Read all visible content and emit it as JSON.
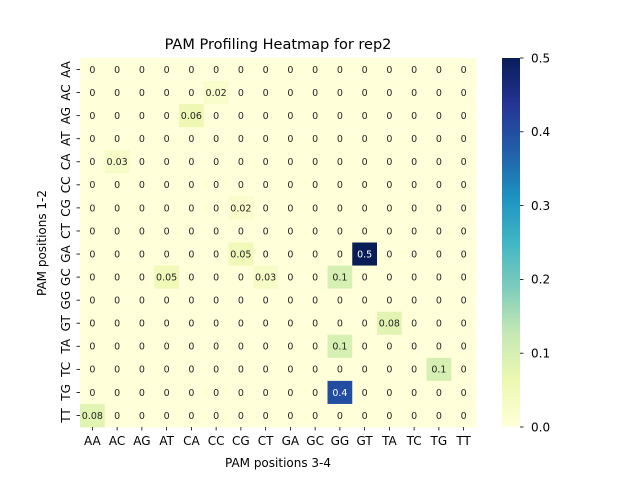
{
  "chart_data": {
    "type": "heatmap",
    "title": "PAM Profiling Heatmap for rep2",
    "xlabel": "PAM positions 3-4",
    "ylabel": "PAM positions 1-2",
    "x_categories": [
      "AA",
      "AC",
      "AG",
      "AT",
      "CA",
      "CC",
      "CG",
      "CT",
      "GA",
      "GC",
      "GG",
      "GT",
      "TA",
      "TC",
      "TG",
      "TT"
    ],
    "y_categories": [
      "AA",
      "AC",
      "AG",
      "AT",
      "CA",
      "CC",
      "CG",
      "CT",
      "GA",
      "GC",
      "GG",
      "GT",
      "TA",
      "TC",
      "TG",
      "TT"
    ],
    "values": [
      [
        0,
        0,
        0,
        0,
        0,
        0,
        0,
        0,
        0,
        0,
        0,
        0,
        0,
        0,
        0,
        0
      ],
      [
        0,
        0,
        0,
        0,
        0,
        0.02,
        0,
        0,
        0,
        0,
        0,
        0,
        0,
        0,
        0,
        0
      ],
      [
        0,
        0,
        0,
        0,
        0.06,
        0,
        0,
        0,
        0,
        0,
        0,
        0,
        0,
        0,
        0,
        0
      ],
      [
        0,
        0,
        0,
        0,
        0,
        0,
        0,
        0,
        0,
        0,
        0,
        0,
        0,
        0,
        0,
        0
      ],
      [
        0,
        0.03,
        0,
        0,
        0,
        0,
        0,
        0,
        0,
        0,
        0,
        0,
        0,
        0,
        0,
        0
      ],
      [
        0,
        0,
        0,
        0,
        0,
        0,
        0,
        0,
        0,
        0,
        0,
        0,
        0,
        0,
        0,
        0
      ],
      [
        0,
        0,
        0,
        0,
        0,
        0,
        0.02,
        0,
        0,
        0,
        0,
        0,
        0,
        0,
        0,
        0
      ],
      [
        0,
        0,
        0,
        0,
        0,
        0,
        0,
        0,
        0,
        0,
        0,
        0,
        0,
        0,
        0,
        0
      ],
      [
        0,
        0,
        0,
        0,
        0,
        0,
        0.05,
        0,
        0,
        0,
        0,
        0.5,
        0,
        0,
        0,
        0
      ],
      [
        0,
        0,
        0,
        0.05,
        0,
        0,
        0,
        0.03,
        0,
        0,
        0.1,
        0,
        0,
        0,
        0,
        0
      ],
      [
        0,
        0,
        0,
        0,
        0,
        0,
        0,
        0,
        0,
        0,
        0,
        0,
        0,
        0,
        0,
        0
      ],
      [
        0,
        0,
        0,
        0,
        0,
        0,
        0,
        0,
        0,
        0,
        0,
        0,
        0.08,
        0,
        0,
        0
      ],
      [
        0,
        0,
        0,
        0,
        0,
        0,
        0,
        0,
        0,
        0,
        0.1,
        0,
        0,
        0,
        0,
        0
      ],
      [
        0,
        0,
        0,
        0,
        0,
        0,
        0,
        0,
        0,
        0,
        0,
        0,
        0,
        0,
        0.1,
        0
      ],
      [
        0,
        0,
        0,
        0,
        0,
        0,
        0,
        0,
        0,
        0,
        0.4,
        0,
        0,
        0,
        0,
        0
      ],
      [
        0.08,
        0,
        0,
        0,
        0,
        0,
        0,
        0,
        0,
        0,
        0,
        0,
        0,
        0,
        0,
        0
      ]
    ],
    "colorbar": {
      "min": 0.0,
      "max": 0.5,
      "ticks": [
        "0.0",
        "0.1",
        "0.2",
        "0.3",
        "0.4",
        "0.5"
      ],
      "colormap": "YlGnBu"
    }
  }
}
